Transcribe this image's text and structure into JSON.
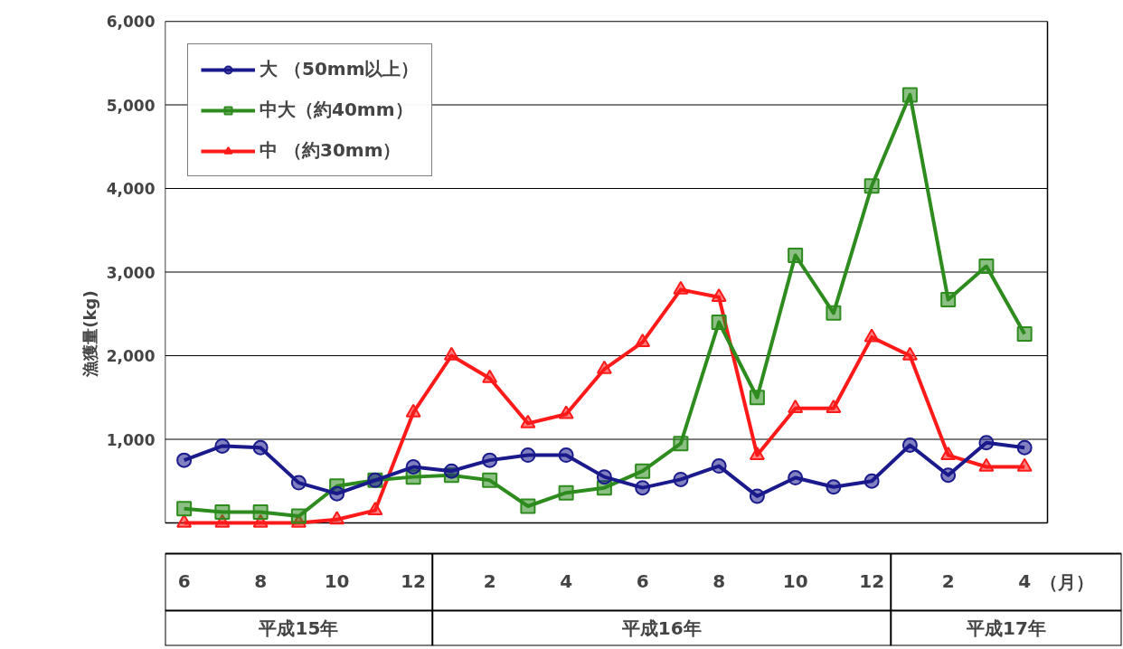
{
  "chart_data": {
    "type": "line",
    "ylabel": "漁獲量(kg)",
    "categories": [
      "6",
      null,
      "8",
      null,
      "10",
      null,
      "12",
      null,
      "2",
      null,
      "4",
      null,
      "6",
      null,
      "8",
      null,
      "10",
      null,
      "12",
      null,
      "2",
      null,
      "4"
    ],
    "series": [
      {
        "name": "大 （50mm以上）",
        "color": "#1a1a8c",
        "marker": "circle",
        "values": [
          750,
          920,
          900,
          480,
          350,
          510,
          670,
          620,
          750,
          810,
          810,
          550,
          420,
          520,
          680,
          320,
          540,
          430,
          500,
          930,
          570,
          960,
          900
        ]
      },
      {
        "name": "中大（約40mm）",
        "color": "#2e8b1e",
        "marker": "square",
        "values": [
          170,
          130,
          130,
          80,
          440,
          510,
          550,
          570,
          510,
          200,
          360,
          420,
          620,
          950,
          2400,
          1500,
          3200,
          2510,
          4030,
          5120,
          2670,
          3070,
          2260
        ]
      },
      {
        "name": "中 （約30mm）",
        "color": "#ff1a1a",
        "marker": "triangle",
        "values": [
          0,
          0,
          0,
          0,
          40,
          150,
          1320,
          2000,
          1730,
          1190,
          1300,
          1840,
          2160,
          2790,
          2700,
          810,
          1370,
          1370,
          2220,
          2000,
          810,
          670,
          670
        ]
      }
    ],
    "ylim": [
      0,
      6000
    ],
    "yticks": [
      {
        "value": 1000,
        "label": "1,000"
      },
      {
        "value": 2000,
        "label": "2,000"
      },
      {
        "value": 3000,
        "label": "3,000"
      },
      {
        "value": 4000,
        "label": "4,000"
      },
      {
        "value": 5000,
        "label": "5,000"
      },
      {
        "value": 6000,
        "label": "6,000"
      }
    ],
    "grid": "y",
    "legend": "top left",
    "annotations": [
      "（月）",
      "平成15年",
      "平成16年",
      "平成17年"
    ]
  }
}
